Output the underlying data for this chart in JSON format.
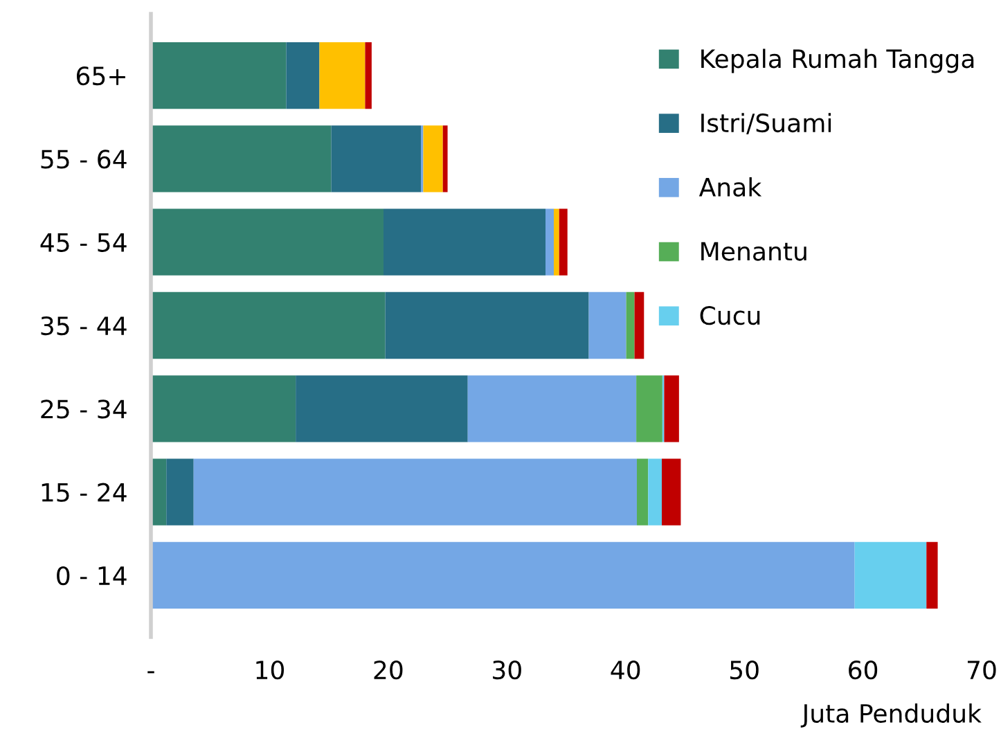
{
  "chart_data": {
    "type": "bar",
    "orientation": "horizontal",
    "stacked": true,
    "xlabel": "Juta Penduduk",
    "categories": [
      "65+",
      "55 - 64",
      "45 - 54",
      "35 - 44",
      "25 - 34",
      "15 - 24",
      "0 - 14"
    ],
    "series": [
      {
        "name": "Kepala Rumah Tangga",
        "color": "#338170",
        "values": [
          11.4,
          15.2,
          19.6,
          19.75,
          12.2,
          1.3,
          0
        ]
      },
      {
        "name": "Istri/Suami",
        "color": "#276e86",
        "values": [
          2.8,
          7.55,
          13.65,
          17.15,
          14.5,
          2.3,
          0
        ]
      },
      {
        "name": "Anak",
        "color": "#74a7e5",
        "values": [
          0,
          0.2,
          0.7,
          3.15,
          14.2,
          37.35,
          59.3
        ]
      },
      {
        "name": "Menantu",
        "color": "#56ae57",
        "values": [
          0,
          0,
          0,
          0.7,
          2.2,
          0.95,
          0
        ]
      },
      {
        "name": "Cucu",
        "color": "#67cfee",
        "values": [
          0,
          0,
          0,
          0,
          0.15,
          1.15,
          6.05
        ]
      },
      {
        "color": "#ffc000",
        "values": [
          3.85,
          1.65,
          0.45,
          0,
          0,
          0,
          0
        ]
      },
      {
        "color": "#c00000",
        "values": [
          0.55,
          0.4,
          0.7,
          0.8,
          1.25,
          1.6,
          0.95
        ]
      }
    ],
    "xlim": [
      0,
      70
    ],
    "xticks": [
      {
        "value": 0,
        "label": "-"
      },
      10,
      20,
      30,
      40,
      50,
      60,
      70
    ],
    "grid": false,
    "legend": "top right"
  }
}
